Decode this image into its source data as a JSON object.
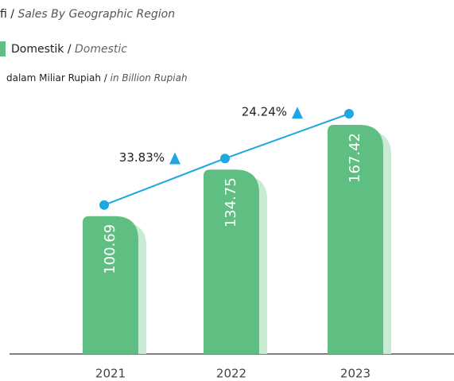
{
  "chart_data": {
    "type": "bar",
    "title": "fi",
    "title_en": "Sales By Geographic Region",
    "legend_label": "Domestik",
    "legend_label_en": "Domestic",
    "unit": "dalam Miliar Rupiah",
    "unit_en": "in Billion Rupiah",
    "categories": [
      "2021",
      "2022",
      "2023"
    ],
    "series": [
      {
        "name": "Domestik",
        "color": "#5fbf82",
        "values": [
          100.69,
          134.75,
          167.42
        ]
      }
    ],
    "line_color": "#1ea7e1",
    "annotations": [
      "33.83%",
      "24.24%"
    ]
  }
}
